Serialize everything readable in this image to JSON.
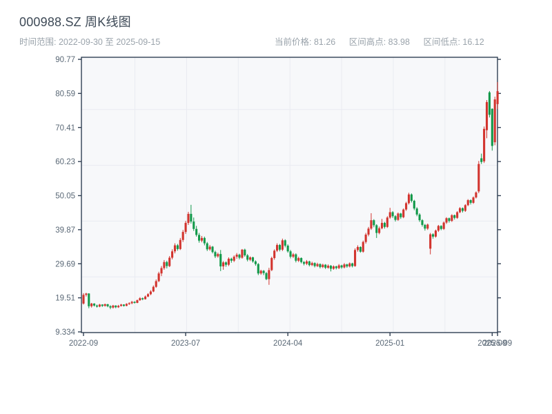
{
  "header": {
    "title": "000988.SZ 周K线图",
    "time_range": "时间范围: 2022-09-30 至 2025-09-15",
    "stats": [
      "当前价格: 81.26",
      "区间高点: 83.98",
      "区间低点: 16.12"
    ]
  },
  "chart_data": {
    "type": "candlestick",
    "title": "000988.SZ 周K线图",
    "frequency_label": "周K线图",
    "start_date": "2022-09-30",
    "end_date": "2025-09-15",
    "current_price": 81.26,
    "range_high": 83.98,
    "range_low": 16.12,
    "ylim": [
      9.334,
      90.77
    ],
    "grid": true,
    "y_ticks": [
      "90.77",
      "80.59",
      "70.41",
      "60.23",
      "50.05",
      "39.87",
      "29.69",
      "19.51",
      "9.334"
    ],
    "x_ticks": [
      {
        "label": "2022-09",
        "week": 0
      },
      {
        "label": "2023-07",
        "week": 38
      },
      {
        "label": "2024-04",
        "week": 76
      },
      {
        "label": "2025-01",
        "week": 114
      },
      {
        "label": "2025-09",
        "week": 152
      },
      {
        "label": "2025-09",
        "week": 154
      }
    ],
    "colors": {
      "up": "#d2342e",
      "down": "#12994a",
      "axis": "#2f3e52",
      "tick_text": "#5a6876",
      "plot_bg": "#f7f8fa",
      "grid_line": "#e9ebf1"
    },
    "candles_format": [
      "open",
      "high",
      "low",
      "close"
    ],
    "candles": [
      [
        17.8,
        20.9,
        17.5,
        20.4
      ],
      [
        20.4,
        21.0,
        19.9,
        20.8
      ],
      [
        20.8,
        20.9,
        16.4,
        17.0
      ],
      [
        17.0,
        18.0,
        16.6,
        17.8
      ],
      [
        17.8,
        17.9,
        16.9,
        17.2
      ],
      [
        17.2,
        17.5,
        16.6,
        16.9
      ],
      [
        16.9,
        17.7,
        16.7,
        17.5
      ],
      [
        17.5,
        17.6,
        16.8,
        17.1
      ],
      [
        17.1,
        17.8,
        16.9,
        17.6
      ],
      [
        17.6,
        17.7,
        16.7,
        17.0
      ],
      [
        17.0,
        17.3,
        16.12,
        16.6
      ],
      [
        16.6,
        17.4,
        16.3,
        17.2
      ],
      [
        17.2,
        17.3,
        16.4,
        16.7
      ],
      [
        16.7,
        17.4,
        16.5,
        17.1
      ],
      [
        17.1,
        17.7,
        16.9,
        17.5
      ],
      [
        17.5,
        17.6,
        16.9,
        17.1
      ],
      [
        17.1,
        17.9,
        17.0,
        17.7
      ],
      [
        17.7,
        18.2,
        17.4,
        17.9
      ],
      [
        17.9,
        18.6,
        17.6,
        18.3
      ],
      [
        18.3,
        18.5,
        17.8,
        18.0
      ],
      [
        18.0,
        19.0,
        17.9,
        18.8
      ],
      [
        18.8,
        19.7,
        18.6,
        19.4
      ],
      [
        19.4,
        19.6,
        18.8,
        19.1
      ],
      [
        19.1,
        20.2,
        19.0,
        19.9
      ],
      [
        19.9,
        20.9,
        19.7,
        20.6
      ],
      [
        20.6,
        21.8,
        20.3,
        21.4
      ],
      [
        21.4,
        23.2,
        21.2,
        22.8
      ],
      [
        22.8,
        25.0,
        22.5,
        24.5
      ],
      [
        24.5,
        27.3,
        24.2,
        26.8
      ],
      [
        26.8,
        29.0,
        26.0,
        28.4
      ],
      [
        28.4,
        30.8,
        27.9,
        30.2
      ],
      [
        30.2,
        30.6,
        28.3,
        29.0
      ],
      [
        29.0,
        32.0,
        28.7,
        31.5
      ],
      [
        31.5,
        34.0,
        31.0,
        33.4
      ],
      [
        33.4,
        35.8,
        32.8,
        35.2
      ],
      [
        35.2,
        35.6,
        33.6,
        34.1
      ],
      [
        34.1,
        37.4,
        33.8,
        36.8
      ],
      [
        36.8,
        39.8,
        36.2,
        39.2
      ],
      [
        39.2,
        42.5,
        38.6,
        41.9
      ],
      [
        41.9,
        45.2,
        41.3,
        44.6
      ],
      [
        44.6,
        47.3,
        41.7,
        42.3
      ],
      [
        42.3,
        43.5,
        39.5,
        40.1
      ],
      [
        40.1,
        41.0,
        37.8,
        38.3
      ],
      [
        38.3,
        38.9,
        36.0,
        36.6
      ],
      [
        36.6,
        38.0,
        36.1,
        37.4
      ],
      [
        37.4,
        37.8,
        35.2,
        35.8
      ],
      [
        35.8,
        36.2,
        33.5,
        34.0
      ],
      [
        34.0,
        35.3,
        33.6,
        34.8
      ],
      [
        34.8,
        35.0,
        32.8,
        33.2
      ],
      [
        33.2,
        33.6,
        31.4,
        31.9
      ],
      [
        31.9,
        33.0,
        31.5,
        32.6
      ],
      [
        32.6,
        33.8,
        27.5,
        28.9
      ],
      [
        28.9,
        30.5,
        27.9,
        30.1
      ],
      [
        30.1,
        30.4,
        28.8,
        29.4
      ],
      [
        29.4,
        31.6,
        29.0,
        31.2
      ],
      [
        31.2,
        31.5,
        30.0,
        30.6
      ],
      [
        30.6,
        32.2,
        30.2,
        31.8
      ],
      [
        31.8,
        32.9,
        31.2,
        32.4
      ],
      [
        32.4,
        32.7,
        31.0,
        31.5
      ],
      [
        31.5,
        34.1,
        31.2,
        33.9
      ],
      [
        33.9,
        34.2,
        31.8,
        32.2
      ],
      [
        32.2,
        32.6,
        30.4,
        30.9
      ],
      [
        30.9,
        31.9,
        30.5,
        31.6
      ],
      [
        31.6,
        31.8,
        30.0,
        30.4
      ],
      [
        30.4,
        30.7,
        29.1,
        29.6
      ],
      [
        29.6,
        29.9,
        26.3,
        26.8
      ],
      [
        26.8,
        27.9,
        26.4,
        27.6
      ],
      [
        27.6,
        27.8,
        26.3,
        26.9
      ],
      [
        26.9,
        27.2,
        24.8,
        25.1
      ],
      [
        25.1,
        28.5,
        23.4,
        27.8
      ],
      [
        27.8,
        31.8,
        27.5,
        31.4
      ],
      [
        31.4,
        34.0,
        30.9,
        33.6
      ],
      [
        33.6,
        35.8,
        33.2,
        35.3
      ],
      [
        35.3,
        35.6,
        33.4,
        33.9
      ],
      [
        33.9,
        37.2,
        33.5,
        36.7
      ],
      [
        36.7,
        37.0,
        34.6,
        35.1
      ],
      [
        35.1,
        35.5,
        33.0,
        33.4
      ],
      [
        33.4,
        33.8,
        31.3,
        31.8
      ],
      [
        31.8,
        32.9,
        31.4,
        32.5
      ],
      [
        32.5,
        32.8,
        30.1,
        30.6
      ],
      [
        30.6,
        31.8,
        30.2,
        31.4
      ],
      [
        31.4,
        31.6,
        29.8,
        30.2
      ],
      [
        30.2,
        30.5,
        29.2,
        29.7
      ],
      [
        29.7,
        30.8,
        29.3,
        30.4
      ],
      [
        30.4,
        30.6,
        28.9,
        29.3
      ],
      [
        29.3,
        30.3,
        29.0,
        29.9
      ],
      [
        29.9,
        30.1,
        28.6,
        29.0
      ],
      [
        29.0,
        30.0,
        28.7,
        29.6
      ],
      [
        29.6,
        29.8,
        28.3,
        28.7
      ],
      [
        28.7,
        29.7,
        28.4,
        29.4
      ],
      [
        29.4,
        29.6,
        28.1,
        28.5
      ],
      [
        28.5,
        29.5,
        28.2,
        29.1
      ],
      [
        29.1,
        29.3,
        27.4,
        28.2
      ],
      [
        28.2,
        29.2,
        27.9,
        28.9
      ],
      [
        28.9,
        29.1,
        28.0,
        28.4
      ],
      [
        28.4,
        29.6,
        28.1,
        29.2
      ],
      [
        29.2,
        29.4,
        28.2,
        28.6
      ],
      [
        28.6,
        29.9,
        28.3,
        29.5
      ],
      [
        29.5,
        29.7,
        28.5,
        28.9
      ],
      [
        28.9,
        30.1,
        28.6,
        29.8
      ],
      [
        29.8,
        30.0,
        28.6,
        29.0
      ],
      [
        29.0,
        34.3,
        28.8,
        33.8
      ],
      [
        33.8,
        35.2,
        33.3,
        34.7
      ],
      [
        34.7,
        34.9,
        33.0,
        33.3
      ],
      [
        33.3,
        36.6,
        33.0,
        36.2
      ],
      [
        36.2,
        38.9,
        35.7,
        38.4
      ],
      [
        38.4,
        40.7,
        37.9,
        40.2
      ],
      [
        40.2,
        44.8,
        39.8,
        42.7
      ],
      [
        42.7,
        43.0,
        40.6,
        41.2
      ],
      [
        41.2,
        41.5,
        37.4,
        38.9
      ],
      [
        38.9,
        40.8,
        38.5,
        40.3
      ],
      [
        40.3,
        43.1,
        40.0,
        41.9
      ],
      [
        41.9,
        42.2,
        40.2,
        40.7
      ],
      [
        40.7,
        43.9,
        40.4,
        43.5
      ],
      [
        43.5,
        46.4,
        43.1,
        45.1
      ],
      [
        45.1,
        45.4,
        43.4,
        43.9
      ],
      [
        43.9,
        44.2,
        42.3,
        42.8
      ],
      [
        42.8,
        45.0,
        42.5,
        44.7
      ],
      [
        44.7,
        44.9,
        43.1,
        43.6
      ],
      [
        43.6,
        46.2,
        43.3,
        45.9
      ],
      [
        45.9,
        48.2,
        45.5,
        47.8
      ],
      [
        47.8,
        50.9,
        47.4,
        50.4
      ],
      [
        50.4,
        50.7,
        48.0,
        48.5
      ],
      [
        48.5,
        48.8,
        45.7,
        46.2
      ],
      [
        46.2,
        46.6,
        43.9,
        44.4
      ],
      [
        44.4,
        44.8,
        42.2,
        42.7
      ],
      [
        42.7,
        43.0,
        40.8,
        41.3
      ],
      [
        41.3,
        41.6,
        39.6,
        40.2
      ],
      [
        40.2,
        41.7,
        39.8,
        41.4
      ],
      [
        34.2,
        38.9,
        32.5,
        38.5
      ],
      [
        38.5,
        38.8,
        37.2,
        37.8
      ],
      [
        37.8,
        39.9,
        37.5,
        39.6
      ],
      [
        39.6,
        41.3,
        39.2,
        41.0
      ],
      [
        41.0,
        41.2,
        39.7,
        40.1
      ],
      [
        40.1,
        42.3,
        39.8,
        42.0
      ],
      [
        42.0,
        43.6,
        41.6,
        43.3
      ],
      [
        43.3,
        43.5,
        42.0,
        42.5
      ],
      [
        42.5,
        44.5,
        42.2,
        44.2
      ],
      [
        44.2,
        44.4,
        42.9,
        43.4
      ],
      [
        43.4,
        45.4,
        43.1,
        45.1
      ],
      [
        45.1,
        46.6,
        44.8,
        46.3
      ],
      [
        46.3,
        46.5,
        45.0,
        45.5
      ],
      [
        45.5,
        47.5,
        45.2,
        47.2
      ],
      [
        47.2,
        49.0,
        46.9,
        48.7
      ],
      [
        48.7,
        48.9,
        47.4,
        47.9
      ],
      [
        47.9,
        49.8,
        47.6,
        49.5
      ],
      [
        49.5,
        51.3,
        49.2,
        51.0
      ],
      [
        51.3,
        60.4,
        50.8,
        59.5
      ],
      [
        61.2,
        62.6,
        59.5,
        60.1
      ],
      [
        60.3,
        70.7,
        59.8,
        70.0
      ],
      [
        69.6,
        78.6,
        67.2,
        78.0
      ],
      [
        80.9,
        81.3,
        73.4,
        74.2
      ],
      [
        76.0,
        76.1,
        63.5,
        64.9
      ],
      [
        66.0,
        79.6,
        65.1,
        78.8
      ],
      [
        77.4,
        83.98,
        75.9,
        81.26
      ]
    ]
  }
}
